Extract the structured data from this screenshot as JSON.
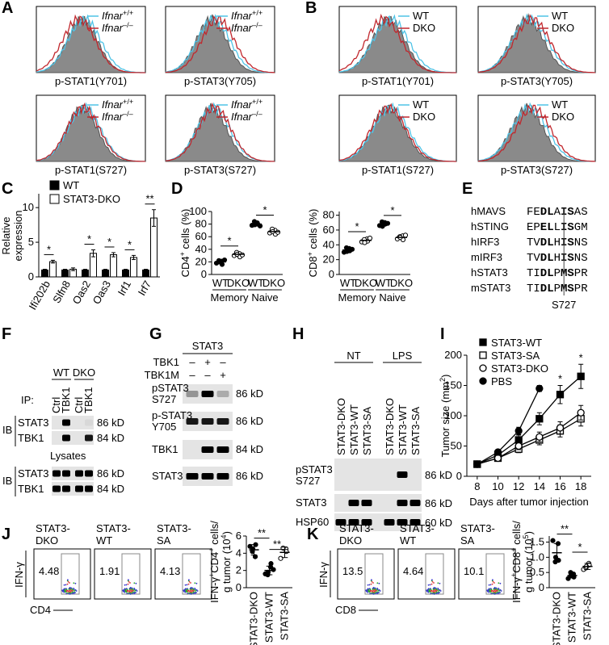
{
  "panel_labels": [
    "A",
    "B",
    "C",
    "D",
    "E",
    "F",
    "G",
    "H",
    "I",
    "J",
    "K"
  ],
  "A": {
    "legend": [
      [
        {
          "text": "Ifnar",
          "italic": true
        },
        {
          "text": "+/+",
          "sup": true
        }
      ],
      [
        {
          "text": "Ifnar",
          "italic": true
        },
        {
          "text": "–/–",
          "sup": true
        }
      ]
    ],
    "colors": [
      "#4fc3e6",
      "#c1272d"
    ],
    "plots": [
      "p-STAT1(Y701)",
      "p-STAT3(Y705)",
      "p-STAT1(S727)",
      "p-STAT3(S727)"
    ]
  },
  "B": {
    "legend": [
      [
        {
          "text": "WT"
        }
      ],
      [
        {
          "text": "DKO"
        }
      ]
    ],
    "colors": [
      "#4fc3e6",
      "#c1272d"
    ],
    "plots": [
      "p-STAT1(Y701)",
      "p-STAT3(Y705)",
      "p-STAT1(S727)",
      "p-STAT3(S727)"
    ]
  },
  "E": {
    "rows": [
      {
        "name": "hMAVS",
        "seq": [
          "FE",
          "DL",
          "A",
          "IS",
          "AS"
        ]
      },
      {
        "name": "hSTING",
        "seq": [
          "EP",
          "EL",
          "L",
          "IS",
          "GM"
        ]
      },
      {
        "name": "hIRF3",
        "seq": [
          "TV",
          "DL",
          "H",
          "IS",
          "NS"
        ]
      },
      {
        "name": "mIRF3",
        "seq": [
          "TV",
          "DL",
          "H",
          "IS",
          "NS"
        ]
      },
      {
        "name": "hSTAT3",
        "seq": [
          "TI",
          "DL",
          "P",
          "MS",
          "PR"
        ]
      },
      {
        "name": "mSTAT3",
        "seq": [
          "TI",
          "DL",
          "P",
          "MS",
          "PR"
        ]
      }
    ],
    "site": "S727"
  },
  "F": {
    "genotypes": [
      "WT",
      "DKO"
    ],
    "ip": "IP:",
    "lanes": [
      "Ctrl",
      "TBK1",
      "Ctrl",
      "TBK1"
    ],
    "ib": "IB",
    "ip_blots": [
      {
        "label": "STAT3",
        "kd": "86 kD"
      },
      {
        "label": "TBK1",
        "kd": "84 kD"
      }
    ],
    "lysates": "Lysates",
    "lysate_ib": "IB",
    "lysate_blots": [
      {
        "label": "STAT3",
        "kd": "86 kD"
      },
      {
        "label": "TBK1",
        "kd": "84 kD"
      }
    ]
  },
  "G": {
    "header": "STAT3",
    "conditions": [
      {
        "label": "TBK1",
        "signs": [
          "–",
          "+",
          "–"
        ]
      },
      {
        "label": "TBK1M",
        "signs": [
          "–",
          "–",
          "+"
        ]
      }
    ],
    "blots": [
      {
        "label": [
          "pSTAT3",
          "S727"
        ],
        "kd": "86 kD"
      },
      {
        "label": [
          "p-STAT3",
          "Y705"
        ],
        "kd": "86 kD"
      },
      {
        "label": [
          "TBK1"
        ],
        "kd": "84 kD"
      },
      {
        "label": [
          "STAT3"
        ],
        "kd": "86 kD"
      }
    ]
  },
  "H": {
    "treatments": [
      "NT",
      "LPS"
    ],
    "lanes": [
      "STAT3-DKO",
      "STAT3-WT",
      "STAT3-SA",
      "STAT3-DKO",
      "STAT3-WT",
      "STAT3-SA"
    ],
    "blots": [
      {
        "label": [
          "pSTAT3",
          "S727"
        ],
        "kd": "86 kD"
      },
      {
        "label": [
          "STAT3"
        ],
        "kd": "86 kD"
      },
      {
        "label": [
          "HSP60"
        ],
        "kd": "60 kD"
      }
    ]
  },
  "J": {
    "samples": [
      [
        "STAT3-",
        "DKO"
      ],
      [
        "STAT3-",
        "WT"
      ],
      [
        "STAT3-",
        "SA"
      ]
    ],
    "gates": [
      4.48,
      1.91,
      4.13
    ],
    "ylabel": "IFN-γ",
    "xlabel": "CD4"
  },
  "K": {
    "samples": [
      [
        "STAT3-",
        "DKO"
      ],
      [
        "STAT3-",
        "WT"
      ],
      [
        "STAT3-",
        "SA"
      ]
    ],
    "gates": [
      13.5,
      4.64,
      10.1
    ],
    "ylabel": "IFN-γ",
    "xlabel": "CD8"
  },
  "chart_data": [
    {
      "type": "bar",
      "ylabel": [
        [
          {
            "text": "Relative"
          }
        ],
        [
          {
            "text": "expression"
          }
        ]
      ],
      "categories": [
        "Ifi202b",
        "Slfn8",
        "Oas2",
        "Oas3",
        "Irf1",
        "Irf7"
      ],
      "series": [
        {
          "name": "WT",
          "color": "#000000",
          "values": [
            1,
            1,
            1,
            1,
            1,
            1
          ],
          "errors": [
            0.1,
            0.1,
            0.1,
            0.1,
            0.1,
            0.1
          ]
        },
        {
          "name": "STAT3-DKO",
          "color": "#ffffff",
          "values": [
            2.2,
            1.1,
            3.4,
            3.2,
            2.8,
            8.5
          ],
          "errors": [
            0.2,
            0.2,
            0.5,
            0.3,
            0.3,
            1.2
          ]
        }
      ],
      "ylim": [
        0,
        12
      ],
      "yticks": [
        0,
        5,
        10
      ],
      "significance": [
        "*",
        null,
        "*",
        "*",
        "*",
        "**"
      ]
    },
    {
      "type": "dot",
      "ylabel": [
        [
          {
            "text": "CD4"
          },
          {
            "text": "+",
            "sup": true
          },
          {
            "text": " cells (%)"
          }
        ]
      ],
      "categories": [
        "WT",
        "DKO",
        "WT",
        "DKO"
      ],
      "groups": [
        "Memory",
        "Naive"
      ],
      "series": [
        {
          "values": [
            20,
            32,
            80,
            68
          ],
          "points": [
            [
              18,
              21,
              16,
              22,
              20,
              23
            ],
            [
              30,
              33,
              28,
              35,
              32,
              31
            ],
            [
              78,
              82,
              80,
              84,
              79,
              77
            ],
            [
              66,
              70,
              64,
              72,
              68,
              67
            ]
          ],
          "markers": [
            "filled",
            "open",
            "filled",
            "open"
          ]
        }
      ],
      "ylim": [
        0,
        100
      ],
      "yticks": [
        0,
        20,
        40,
        60,
        80,
        100
      ],
      "significance": [
        "*",
        "*"
      ]
    },
    {
      "type": "dot",
      "ylabel": [
        [
          {
            "text": "CD8"
          },
          {
            "text": "+",
            "sup": true
          },
          {
            "text": " cells (%)"
          }
        ]
      ],
      "categories": [
        "WT",
        "DKO",
        "WT",
        "DKO"
      ],
      "groups": [
        "Memory",
        "Naive"
      ],
      "series": [
        {
          "values": [
            33,
            46,
            68,
            50
          ],
          "points": [
            [
              30,
              35,
              32,
              36,
              31,
              34
            ],
            [
              44,
              48,
              45,
              47,
              43,
              49
            ],
            [
              66,
              70,
              68,
              71,
              65,
              69
            ],
            [
              48,
              52,
              47,
              51,
              50,
              53
            ]
          ],
          "markers": [
            "filled",
            "open",
            "filled",
            "open"
          ]
        }
      ],
      "ylim": [
        0,
        85
      ],
      "yticks": [
        0,
        20,
        40,
        60,
        80
      ],
      "significance": [
        "*",
        "*"
      ]
    },
    {
      "type": "line",
      "ylabel": [
        [
          {
            "text": "Tumor size (mm"
          },
          {
            "text": "2",
            "sup": true
          },
          {
            "text": ")"
          }
        ]
      ],
      "xlabel": "Days after tumor injection",
      "x": [
        8,
        10,
        12,
        14,
        16,
        18
      ],
      "xlim": [
        7,
        19
      ],
      "xticks": [
        8,
        10,
        12,
        14,
        16,
        18
      ],
      "ylim": [
        0,
        200
      ],
      "yticks": [
        0,
        50,
        100,
        150,
        200
      ],
      "series": [
        {
          "name": "STAT3-WT",
          "marker": "square",
          "filled": true,
          "values": [
            20,
            35,
            60,
            95,
            135,
            165
          ],
          "errors": [
            3,
            5,
            8,
            10,
            15,
            20
          ]
        },
        {
          "name": "STAT3-SA",
          "marker": "square",
          "filled": false,
          "values": [
            20,
            30,
            45,
            60,
            75,
            95
          ],
          "errors": [
            3,
            4,
            6,
            8,
            10,
            12
          ]
        },
        {
          "name": "STAT3-DKO",
          "marker": "circle",
          "filled": false,
          "values": [
            20,
            30,
            50,
            65,
            80,
            105
          ],
          "errors": [
            3,
            4,
            6,
            8,
            10,
            12
          ]
        },
        {
          "name": "PBS",
          "marker": "circle",
          "filled": true,
          "values": [
            20,
            40,
            75,
            145,
            null,
            null
          ],
          "errors": [
            2,
            4,
            6,
            5,
            null,
            null
          ]
        }
      ],
      "annotations": [
        {
          "x": 16,
          "text": "*"
        },
        {
          "x": 18,
          "text": "*"
        }
      ]
    },
    {
      "type": "dot",
      "ylabel": [
        [
          {
            "text": "IFN-γ"
          },
          {
            "text": "+",
            "sup": true
          },
          {
            "text": "CD4"
          },
          {
            "text": "+",
            "sup": true
          },
          {
            "text": " cells/"
          }
        ],
        [
          {
            "text": "g tumor (10"
          },
          {
            "text": "4",
            "sup": true
          },
          {
            "text": ")"
          }
        ]
      ],
      "categories": [
        "STAT3-DKO",
        "STAT3-WT",
        "STAT3-SA"
      ],
      "series": [
        {
          "values": [
            4.4,
            2.0,
            4.1
          ],
          "errors": [
            0.6,
            0.5,
            0.6
          ],
          "points": [
            [
              4.8,
              3.6,
              5.0,
              4.2,
              4.5
            ],
            [
              1.6,
              2.4,
              2.8,
              1.5,
              1.8,
              2.1
            ],
            [
              3.4,
              4.5,
              4.2,
              4.6
            ]
          ],
          "markers": [
            "filled",
            "filled",
            "open"
          ]
        }
      ],
      "ylim": [
        0,
        6
      ],
      "yticks": [
        0,
        2,
        4,
        6
      ],
      "significance": [
        "**",
        "**"
      ]
    },
    {
      "type": "dot",
      "ylabel": [
        [
          {
            "text": "IFN-γ"
          },
          {
            "text": "+",
            "sup": true
          },
          {
            "text": "CD8"
          },
          {
            "text": "+",
            "sup": true
          },
          {
            "text": " cells/"
          }
        ],
        [
          {
            "text": "g tumor (10"
          },
          {
            "text": "5",
            "sup": true
          },
          {
            "text": ")"
          }
        ]
      ],
      "categories": [
        "STAT3-DKO",
        "STAT3-WT",
        "STAT3-SA"
      ],
      "series": [
        {
          "values": [
            1.15,
            0.4,
            0.7
          ],
          "errors": [
            0.3,
            0.08,
            0.1
          ],
          "points": [
            [
              1.55,
              1.45,
              0.9,
              0.85,
              1.0
            ],
            [
              0.3,
              0.45,
              0.35,
              0.5,
              0.4
            ],
            [
              0.6,
              0.8,
              0.75,
              0.65,
              0.7
            ]
          ],
          "markers": [
            "filled",
            "filled",
            "open"
          ]
        }
      ],
      "ylim": [
        0,
        1.7
      ],
      "yticks": [
        0,
        0.5,
        {
          "value": 1,
          "label": "1.0"
        },
        1.5
      ],
      "significance": [
        "**",
        "*"
      ]
    }
  ]
}
